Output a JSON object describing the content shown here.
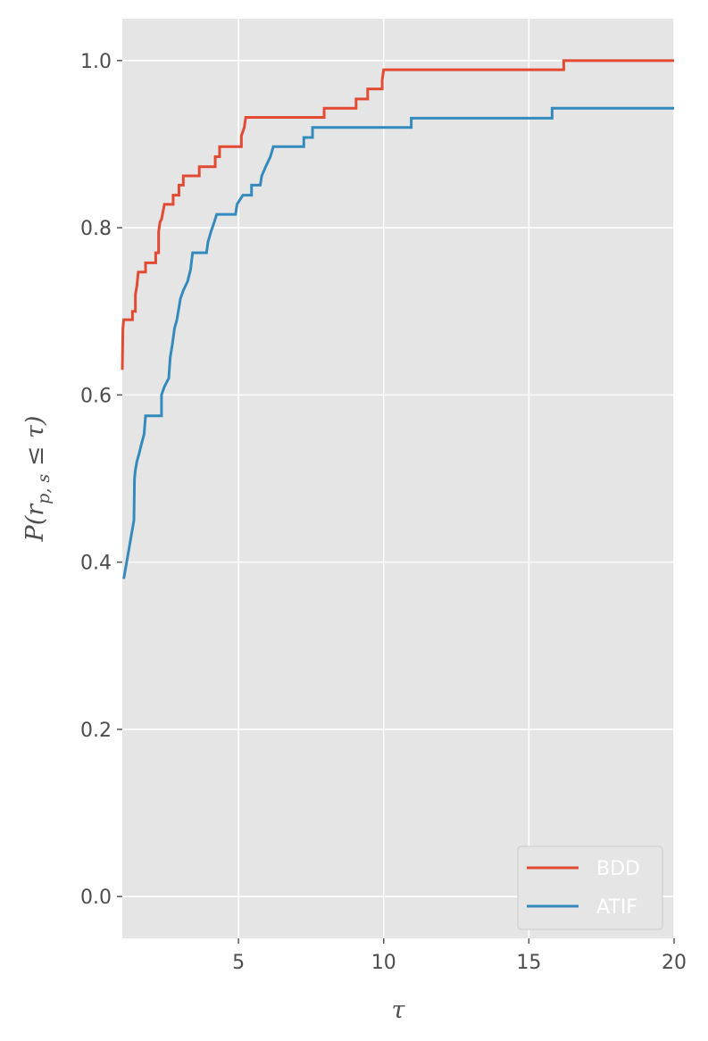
{
  "chart_data": {
    "type": "line",
    "title": "",
    "xlabel": "τ",
    "ylabel": "P(r_{p,s} ≤ τ)",
    "ylabel_parts": {
      "p": "P(",
      "r": "r",
      "sub": "p, s",
      "rest": " ≤ τ)"
    },
    "xlim": [
      1,
      20
    ],
    "ylim": [
      -0.05,
      1.05
    ],
    "xticks": [
      5,
      10,
      15,
      20
    ],
    "xtick_labels": [
      "5",
      "10",
      "15",
      "20"
    ],
    "yticks": [
      0.0,
      0.2,
      0.4,
      0.6,
      0.8,
      1.0
    ],
    "ytick_labels": [
      "0.0",
      "0.2",
      "0.4",
      "0.6",
      "0.8",
      "1.0"
    ],
    "grid": true,
    "legend_position": "bottom-right",
    "series": [
      {
        "name": "BDD",
        "color": "#e24a33",
        "points": [
          [
            1.0,
            0.63
          ],
          [
            1.02,
            0.68
          ],
          [
            1.05,
            0.69
          ],
          [
            1.35,
            0.69
          ],
          [
            1.35,
            0.7
          ],
          [
            1.45,
            0.7
          ],
          [
            1.45,
            0.72
          ],
          [
            1.5,
            0.73
          ],
          [
            1.55,
            0.747
          ],
          [
            1.8,
            0.747
          ],
          [
            1.8,
            0.758
          ],
          [
            2.15,
            0.758
          ],
          [
            2.15,
            0.77
          ],
          [
            2.25,
            0.77
          ],
          [
            2.25,
            0.795
          ],
          [
            2.3,
            0.807
          ],
          [
            2.35,
            0.81
          ],
          [
            2.45,
            0.828
          ],
          [
            2.75,
            0.828
          ],
          [
            2.75,
            0.839
          ],
          [
            2.95,
            0.839
          ],
          [
            2.95,
            0.851
          ],
          [
            3.1,
            0.851
          ],
          [
            3.1,
            0.862
          ],
          [
            3.65,
            0.862
          ],
          [
            3.65,
            0.873
          ],
          [
            4.2,
            0.873
          ],
          [
            4.2,
            0.885
          ],
          [
            4.35,
            0.885
          ],
          [
            4.35,
            0.897
          ],
          [
            5.1,
            0.897
          ],
          [
            5.1,
            0.91
          ],
          [
            5.2,
            0.92
          ],
          [
            5.25,
            0.932
          ],
          [
            7.95,
            0.932
          ],
          [
            7.95,
            0.943
          ],
          [
            9.05,
            0.943
          ],
          [
            9.05,
            0.954
          ],
          [
            9.45,
            0.954
          ],
          [
            9.45,
            0.966
          ],
          [
            9.95,
            0.966
          ],
          [
            9.95,
            0.977
          ],
          [
            10.0,
            0.989
          ],
          [
            16.2,
            0.989
          ],
          [
            16.2,
            1.0
          ],
          [
            20,
            1.0
          ]
        ]
      },
      {
        "name": "ATIF",
        "color": "#348abd",
        "points": [
          [
            1.05,
            0.38
          ],
          [
            1.1,
            0.39
          ],
          [
            1.15,
            0.4
          ],
          [
            1.2,
            0.41
          ],
          [
            1.25,
            0.42
          ],
          [
            1.3,
            0.43
          ],
          [
            1.35,
            0.44
          ],
          [
            1.4,
            0.45
          ],
          [
            1.42,
            0.5
          ],
          [
            1.45,
            0.51
          ],
          [
            1.5,
            0.52
          ],
          [
            1.58,
            0.53
          ],
          [
            1.65,
            0.54
          ],
          [
            1.75,
            0.553
          ],
          [
            1.8,
            0.575
          ],
          [
            2.35,
            0.575
          ],
          [
            2.35,
            0.6
          ],
          [
            2.45,
            0.61
          ],
          [
            2.6,
            0.62
          ],
          [
            2.65,
            0.645
          ],
          [
            2.72,
            0.66
          ],
          [
            2.8,
            0.68
          ],
          [
            2.88,
            0.69
          ],
          [
            3.0,
            0.715
          ],
          [
            3.1,
            0.725
          ],
          [
            3.25,
            0.736
          ],
          [
            3.35,
            0.75
          ],
          [
            3.42,
            0.77
          ],
          [
            3.9,
            0.77
          ],
          [
            3.95,
            0.783
          ],
          [
            4.05,
            0.795
          ],
          [
            4.15,
            0.805
          ],
          [
            4.25,
            0.816
          ],
          [
            4.9,
            0.816
          ],
          [
            4.95,
            0.828
          ],
          [
            5.15,
            0.839
          ],
          [
            5.45,
            0.839
          ],
          [
            5.45,
            0.851
          ],
          [
            5.75,
            0.851
          ],
          [
            5.8,
            0.862
          ],
          [
            5.95,
            0.874
          ],
          [
            6.1,
            0.885
          ],
          [
            6.2,
            0.897
          ],
          [
            7.25,
            0.897
          ],
          [
            7.25,
            0.908
          ],
          [
            7.55,
            0.908
          ],
          [
            7.55,
            0.92
          ],
          [
            10.95,
            0.92
          ],
          [
            10.95,
            0.931
          ],
          [
            15.8,
            0.931
          ],
          [
            15.8,
            0.943
          ],
          [
            20,
            0.943
          ]
        ]
      }
    ]
  }
}
